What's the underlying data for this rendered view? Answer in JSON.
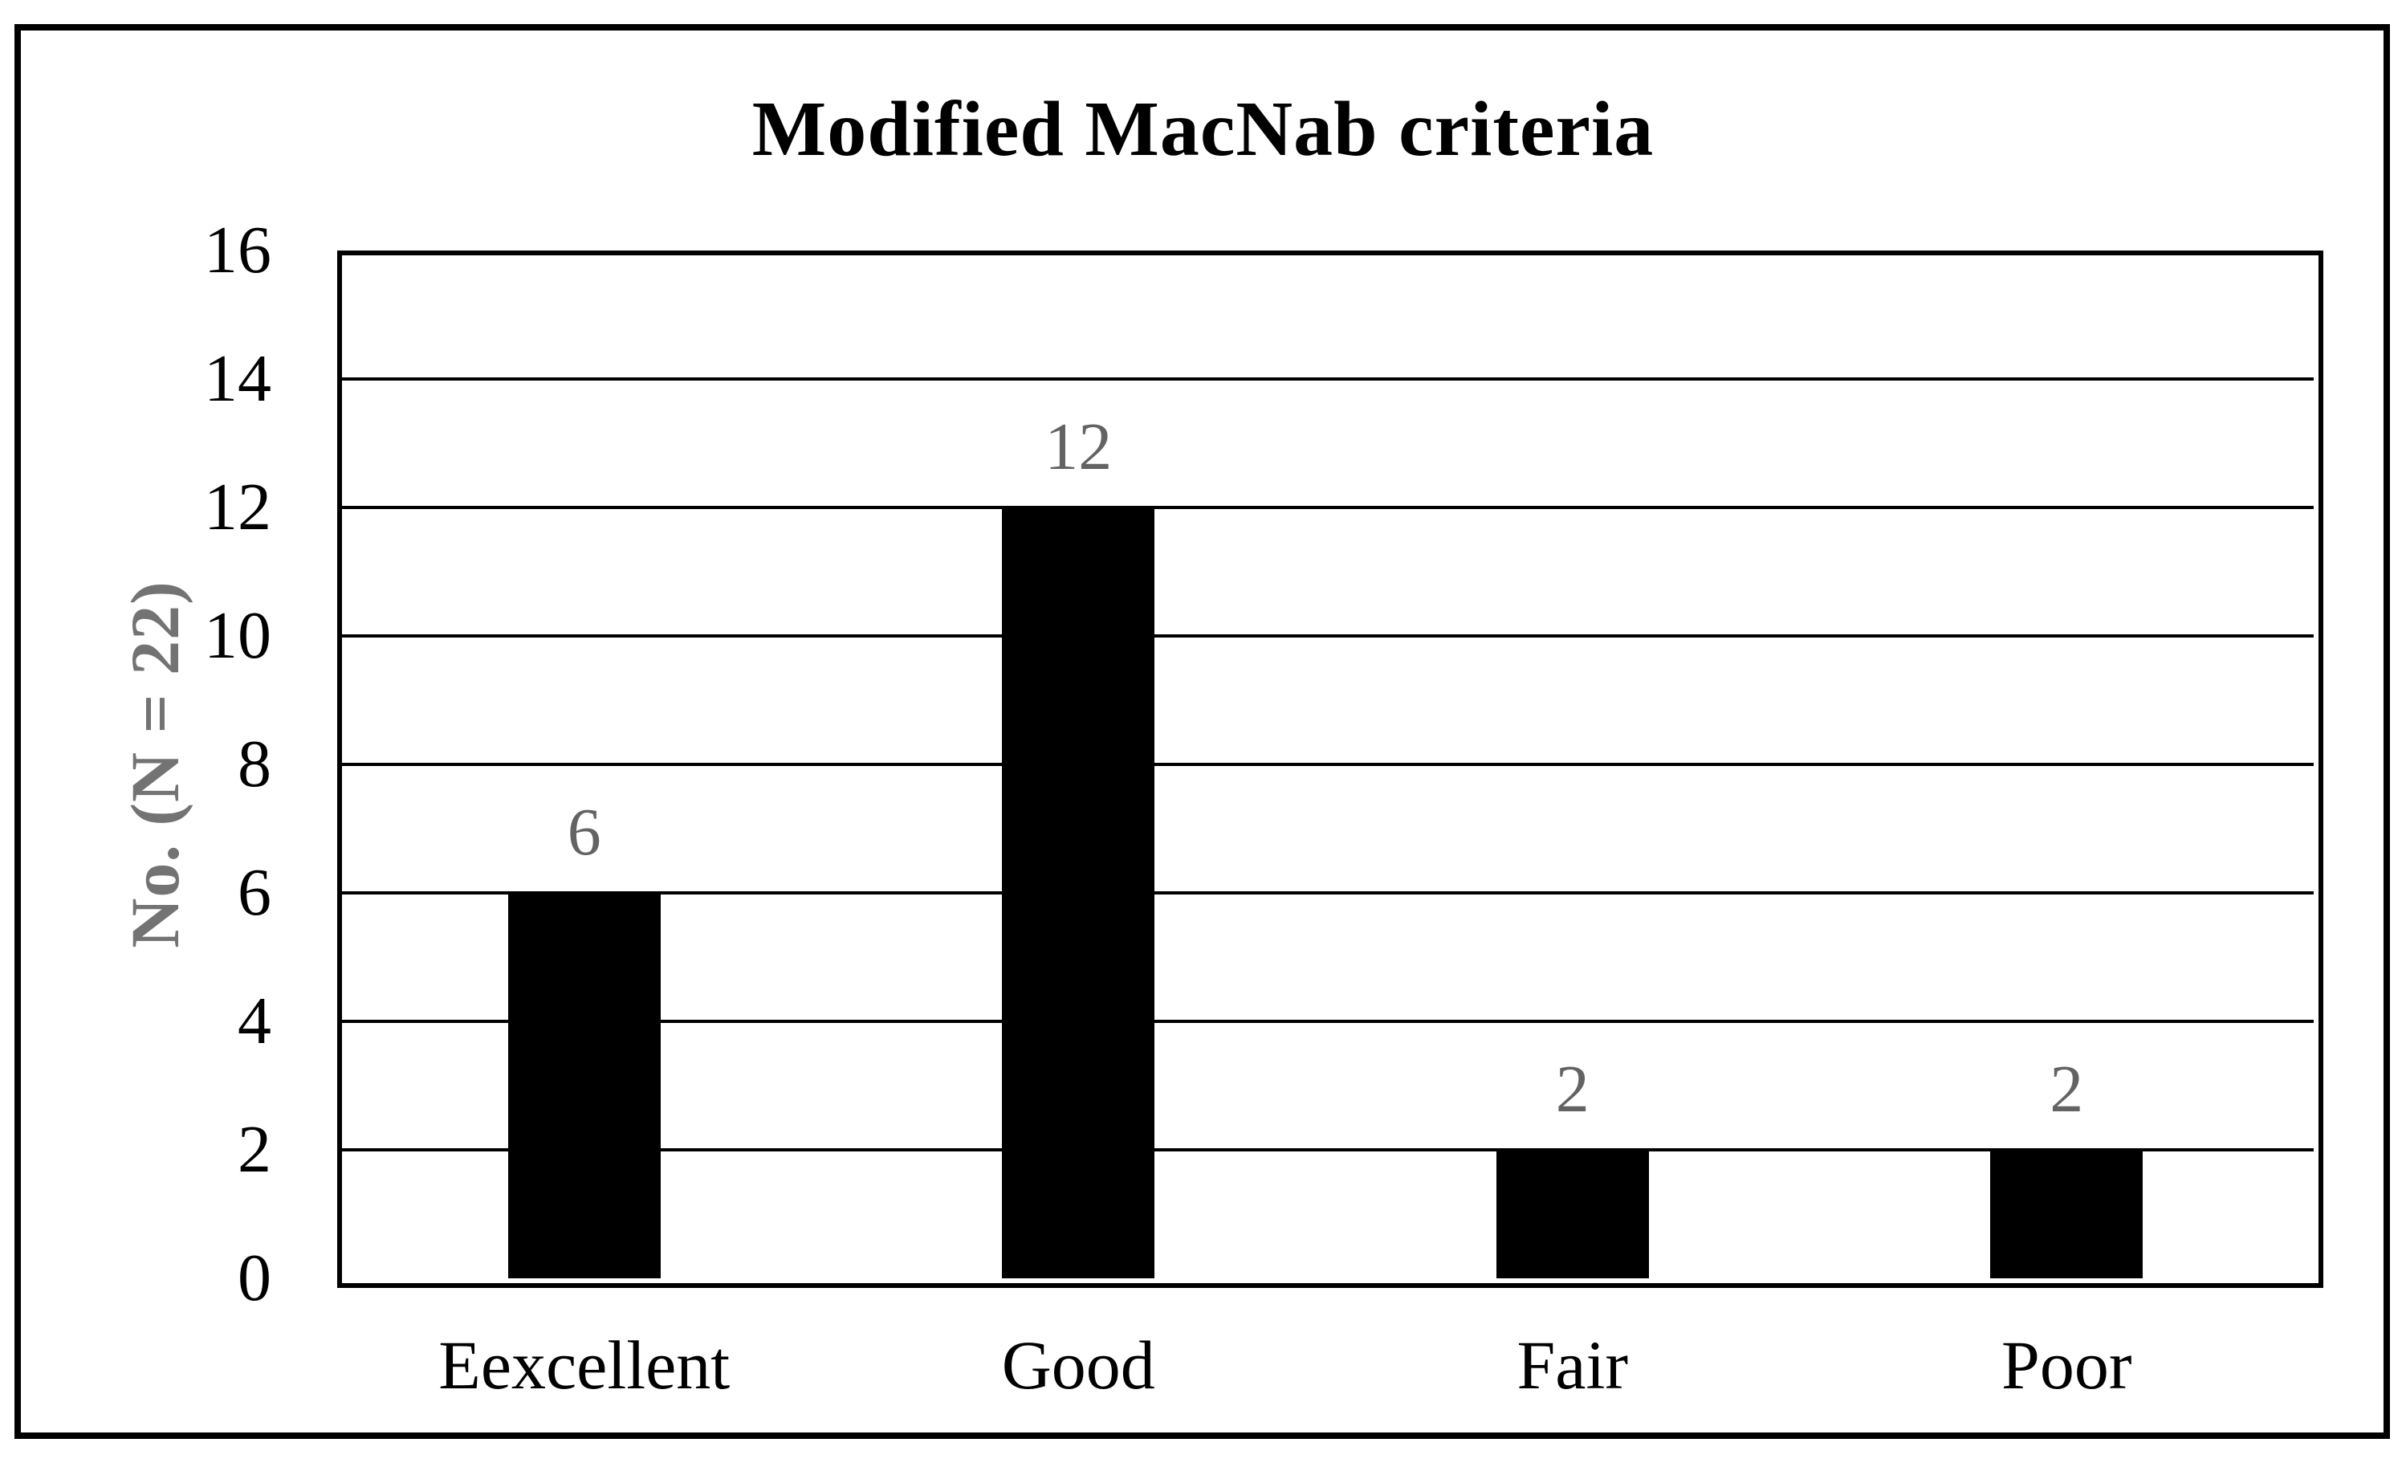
{
  "chart_data": {
    "type": "bar",
    "title": "Modified MacNab criteria",
    "ylabel": "No. (N = 22)",
    "xlabel": "",
    "categories": [
      "Eexcellent",
      "Good",
      "Fair",
      "Poor"
    ],
    "values": [
      6,
      12,
      2,
      2
    ],
    "data_labels": [
      "6",
      "12",
      "2",
      "2"
    ],
    "yticks": [
      0,
      2,
      4,
      6,
      8,
      10,
      12,
      14,
      16
    ],
    "ylim": [
      0,
      16
    ],
    "grid": "horizontal",
    "legend": "none",
    "colors": {
      "bar": "#000000",
      "axis_and_grid": "#000000",
      "tick_label": "#000000",
      "category_label": "#000000",
      "data_label": "#636363",
      "axis_title": "#737373",
      "background": "#ffffff",
      "frame_border": "#000000"
    }
  }
}
